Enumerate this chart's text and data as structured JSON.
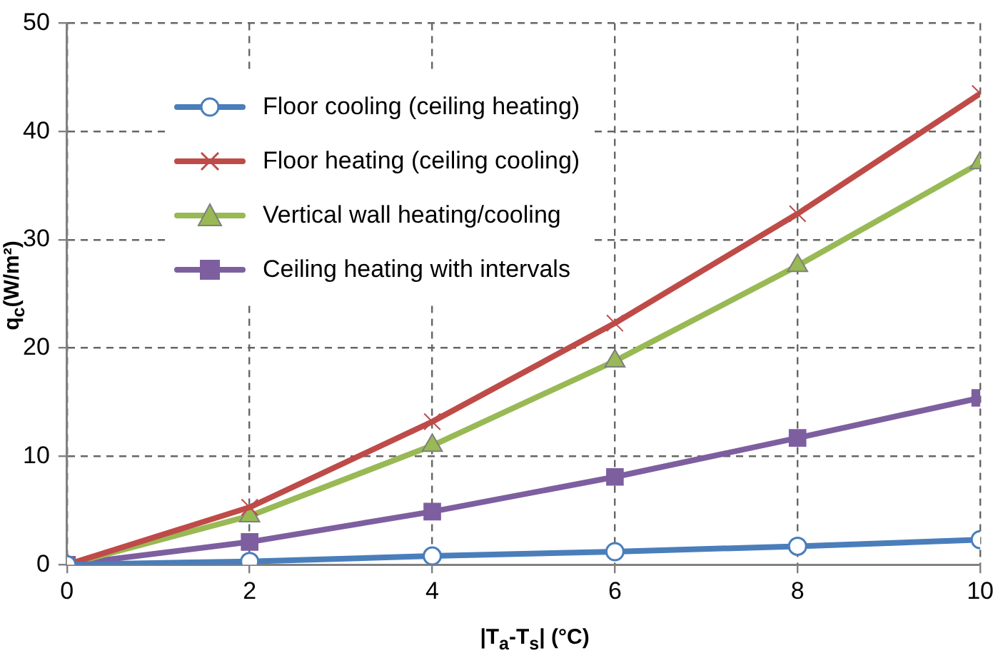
{
  "chart_data": {
    "type": "line",
    "xlabel": "|T$_{a}$-T$_{s}$| (°C)",
    "ylabel": "q$_{c}$(W/m²)",
    "x": [
      0,
      2,
      4,
      6,
      8,
      10
    ],
    "series": [
      {
        "name": "Floor cooling (ceiling heating)",
        "color": "#4a7ebb",
        "marker": "circle",
        "values": [
          0,
          0.3,
          0.8,
          1.2,
          1.7,
          2.3
        ]
      },
      {
        "name": "Floor heating (ceiling cooling)",
        "color": "#be4b48",
        "marker": "cross",
        "values": [
          0,
          5.3,
          13.2,
          22.3,
          32.4,
          43.5
        ]
      },
      {
        "name": "Vertical wall heating/cooling",
        "color": "#98b954",
        "marker": "triangle",
        "values": [
          0,
          4.5,
          11,
          18.8,
          27.6,
          37.1
        ]
      },
      {
        "name": "Ceiling heating with intervals",
        "color": "#7d5fa0",
        "marker": "square",
        "values": [
          0,
          2.1,
          4.9,
          8.1,
          11.7,
          15.4
        ]
      }
    ],
    "xlim": [
      0,
      10
    ],
    "xticks": [
      0,
      2,
      4,
      6,
      8,
      10
    ],
    "ylim": [
      0,
      50
    ],
    "yticks": [
      0,
      10,
      20,
      30,
      40,
      50
    ],
    "grid": true,
    "legend": "top left",
    "line_style": "solid"
  }
}
